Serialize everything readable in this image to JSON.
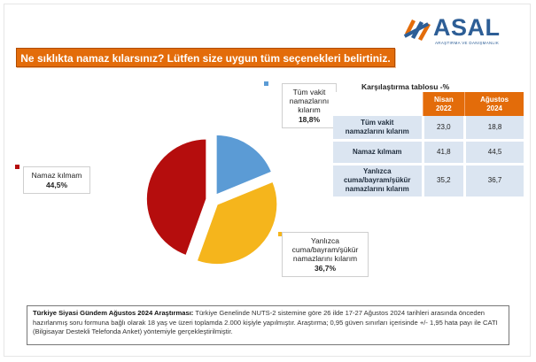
{
  "brand": {
    "name": "ASAL",
    "tagline": "ARAŞTIRMA VE DANIŞMANLIK"
  },
  "question": "Ne sıklıkta namaz kılarsınız? Lütfen size uygun tüm seçenekleri belirtiniz.",
  "chart_data": [
    {
      "type": "pie",
      "title": "",
      "slices": [
        {
          "label": "Tüm vakit namazlarını kılarım",
          "label_lines": [
            "Tüm vakit",
            "namazlarını",
            "kılarım"
          ],
          "value": 18.8,
          "display": "18,8%",
          "color": "#5b9bd5"
        },
        {
          "label": "Yanlızca cuma/bayram/şükür namazlarını kılarım",
          "label_lines": [
            "Yanlızca",
            "cuma/bayram/şükür",
            "namazlarını kılarım"
          ],
          "value": 36.7,
          "display": "36,7%",
          "color": "#f5b51c"
        },
        {
          "label": "Namaz kılmam",
          "label_lines": [
            "Namaz kılmam"
          ],
          "value": 44.5,
          "display": "44,5%",
          "color": "#b50d0d"
        }
      ]
    },
    {
      "type": "table",
      "title": "Karşılaştırma tablosu  -%",
      "columns": [
        "Nisan 2022",
        "Ağustos 2024"
      ],
      "column_lines": [
        [
          "Nisan",
          "2022"
        ],
        [
          "Ağustos",
          "2024"
        ]
      ],
      "rows": [
        {
          "label_lines": [
            "Tüm vakit",
            "namazlarını kılarım"
          ],
          "values": [
            "23,0",
            "18,8"
          ]
        },
        {
          "label_lines": [
            "Namaz kılmam"
          ],
          "values": [
            "41,8",
            "44,5"
          ]
        },
        {
          "label_lines": [
            "Yanlızca",
            "cuma/bayram/şükür",
            "namazlarını kılarım"
          ],
          "values": [
            "35,2",
            "36,7"
          ]
        }
      ]
    }
  ],
  "footnote": {
    "lead": "Türkiye Siyasi Gündem Ağustos 2024 Araştırması:",
    "body": " Türkiye Genelinde NUTS-2 sistemine göre 26 ilde 17-27 Ağustos 2024 tarihleri arasında önceden hazırlanmış soru formuna bağlı olarak 18 yaş ve üzeri toplamda 2.000 kişiyle yapılmıştır. Araştırma; 0,95 güven sınırları içerisinde +/- 1,95 hata payı ile CATI (Bilgisayar Destekli Telefonda Anket) yöntemiyle gerçekleştirilmiştir."
  }
}
